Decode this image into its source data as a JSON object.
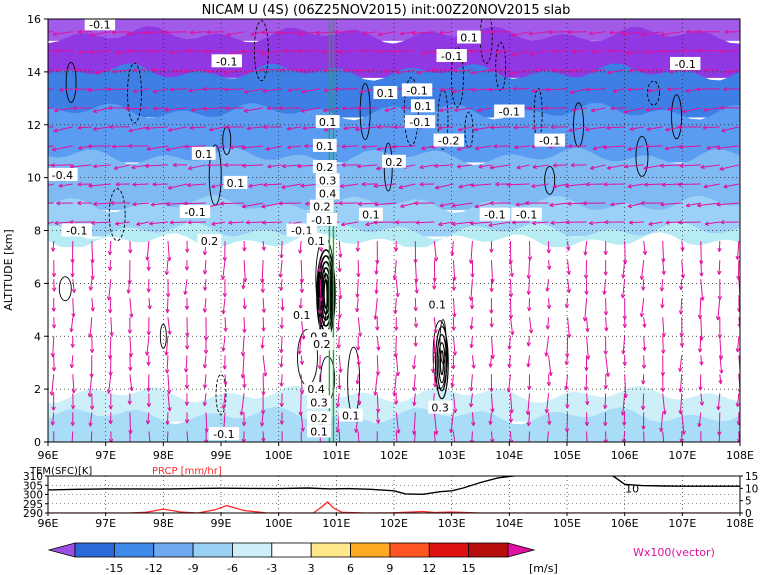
{
  "title": "NICAM U (4S) (06Z25NOV2015) init:00Z20NOV2015 slab",
  "colors": {
    "upward_motion": "#e8e8ff",
    "vectors": "#e0119e",
    "contours": "#000000",
    "grid_line": "#222222",
    "precip": "#ff2a2a",
    "temperature": "#000000",
    "marker_green": "#22aa33"
  },
  "chart_data": [
    {
      "type": "heatmap",
      "title": "NICAM U (4S) (06Z25NOV2015) init:00Z20NOV2015 slab",
      "ylabel": "ALTITUDE [km]",
      "xlim": [
        96,
        108
      ],
      "ylim": [
        0,
        16
      ],
      "xticks": [
        "96E",
        "97E",
        "98E",
        "99E",
        "100E",
        "101E",
        "102E",
        "103E",
        "104E",
        "105E",
        "106E",
        "107E",
        "108E"
      ],
      "yticks": [
        "0",
        "2",
        "4",
        "6",
        "8",
        "10",
        "12",
        "14",
        "16"
      ],
      "grid": true,
      "fill_layers": [
        {
          "top_km": 16.0,
          "value": -15,
          "color": "#a25be8"
        },
        {
          "top_km": 15.4,
          "value": -14,
          "color": "#8f38e3"
        },
        {
          "top_km": 14.0,
          "value": -9,
          "color": "#3e7fe6"
        },
        {
          "top_km": 12.5,
          "value": -7,
          "color": "#5a9cf2"
        },
        {
          "top_km": 10.8,
          "value": -5,
          "color": "#7fbaf5"
        },
        {
          "top_km": 9.0,
          "value": -4,
          "color": "#9bd1f7"
        },
        {
          "top_km": 8.0,
          "value": -2,
          "color": "#b8ecf5"
        },
        {
          "top_km": 7.6,
          "value": 0,
          "color": "#ffffff"
        },
        {
          "top_km": 1.8,
          "value": -2,
          "color": "#cdeff8"
        },
        {
          "top_km": 1.0,
          "value": -3,
          "color": "#a8dcf7"
        }
      ],
      "contour_labels": [
        {
          "x": 96.9,
          "y": 15.8,
          "text": "-0.1"
        },
        {
          "x": 96.25,
          "y": 10.1,
          "text": "-0.4"
        },
        {
          "x": 96.5,
          "y": 8.0,
          "text": "-0.1"
        },
        {
          "x": 98.7,
          "y": 10.9,
          "text": "0.1"
        },
        {
          "x": 99.25,
          "y": 9.8,
          "text": "0.1"
        },
        {
          "x": 98.55,
          "y": 8.7,
          "text": "-0.1"
        },
        {
          "x": 98.8,
          "y": 7.6,
          "text": "0.2"
        },
        {
          "x": 99.1,
          "y": 14.4,
          "text": "-0.1"
        },
        {
          "x": 100.4,
          "y": 8.0,
          "text": "-0.1"
        },
        {
          "x": 100.85,
          "y": 12.1,
          "text": "0.1"
        },
        {
          "x": 100.8,
          "y": 11.2,
          "text": "0.1"
        },
        {
          "x": 100.8,
          "y": 10.4,
          "text": "0.2"
        },
        {
          "x": 100.85,
          "y": 9.9,
          "text": "0.3"
        },
        {
          "x": 100.85,
          "y": 9.4,
          "text": "0.4"
        },
        {
          "x": 100.75,
          "y": 8.9,
          "text": "0.2"
        },
        {
          "x": 100.75,
          "y": 8.4,
          "text": "-0.1"
        },
        {
          "x": 100.65,
          "y": 7.6,
          "text": "0.1"
        },
        {
          "x": 100.4,
          "y": 4.8,
          "text": "0.1"
        },
        {
          "x": 100.7,
          "y": 4.0,
          "text": "0.8"
        },
        {
          "x": 100.75,
          "y": 3.7,
          "text": "0.2"
        },
        {
          "x": 100.65,
          "y": 2.0,
          "text": "0.4"
        },
        {
          "x": 100.7,
          "y": 1.5,
          "text": "0.3"
        },
        {
          "x": 100.7,
          "y": 0.9,
          "text": "0.2"
        },
        {
          "x": 100.7,
          "y": 0.4,
          "text": "0.1"
        },
        {
          "x": 101.25,
          "y": 1.0,
          "text": "0.1"
        },
        {
          "x": 101.6,
          "y": 8.6,
          "text": "0.1"
        },
        {
          "x": 102.0,
          "y": 10.6,
          "text": "0.2"
        },
        {
          "x": 101.85,
          "y": 13.2,
          "text": "0.1"
        },
        {
          "x": 102.4,
          "y": 13.3,
          "text": "-0.1"
        },
        {
          "x": 102.5,
          "y": 12.7,
          "text": "0.1"
        },
        {
          "x": 102.45,
          "y": 12.1,
          "text": "-0.1"
        },
        {
          "x": 102.95,
          "y": 11.4,
          "text": "-0.2"
        },
        {
          "x": 103.0,
          "y": 14.6,
          "text": "-0.1"
        },
        {
          "x": 103.3,
          "y": 15.3,
          "text": "0.1"
        },
        {
          "x": 104.0,
          "y": 12.5,
          "text": "-0.1"
        },
        {
          "x": 104.7,
          "y": 11.4,
          "text": "-0.1"
        },
        {
          "x": 103.75,
          "y": 8.6,
          "text": "-0.1"
        },
        {
          "x": 104.3,
          "y": 8.6,
          "text": "-0.1"
        },
        {
          "x": 107.05,
          "y": 14.3,
          "text": "-0.1"
        },
        {
          "x": 102.75,
          "y": 5.2,
          "text": "0.1"
        },
        {
          "x": 102.8,
          "y": 1.3,
          "text": "0.3"
        },
        {
          "x": 99.05,
          "y": 0.3,
          "text": "-0.1"
        }
      ]
    },
    {
      "type": "line",
      "y_left_title": "TEM(SFC)[K]",
      "y_right_title": "PRCP [mm/hr]",
      "xlim": [
        96,
        108
      ],
      "y_left_ticks": [
        "290",
        "295",
        "300",
        "305",
        "310"
      ],
      "y_left_range": [
        290,
        310
      ],
      "y_right_ticks": [
        "0",
        "5",
        "10",
        "15"
      ],
      "y_right_range": [
        0,
        15
      ],
      "series": [
        {
          "name": "TEM(SFC)[K]",
          "x": [
            96.0,
            96.5,
            97.0,
            97.5,
            98.0,
            98.5,
            99.0,
            99.5,
            100.0,
            100.5,
            100.9,
            101.2,
            101.6,
            102.0,
            102.2,
            102.5,
            102.8,
            103.0,
            103.2,
            103.5,
            103.8,
            104.2,
            104.6,
            105.0,
            105.5,
            105.8,
            106.0,
            106.3,
            106.7,
            107.0,
            107.5,
            108.0
          ],
          "y": [
            302.5,
            302.8,
            303.0,
            303.0,
            302.9,
            303.2,
            303.4,
            303.3,
            303.2,
            303.5,
            303.0,
            303.2,
            302.8,
            302.0,
            300.3,
            300.1,
            301.5,
            302.0,
            303.5,
            306.5,
            309.0,
            310.5,
            311.0,
            311.0,
            311.0,
            310.0,
            305.5,
            304.8,
            304.6,
            304.5,
            304.5,
            304.5
          ]
        },
        {
          "name": "PRCP [mm/hr]",
          "x": [
            96.0,
            96.5,
            97.0,
            97.4,
            97.7,
            98.0,
            98.3,
            98.6,
            98.9,
            99.1,
            99.4,
            99.8,
            100.2,
            100.6,
            100.75,
            100.85,
            100.95,
            101.1,
            101.5,
            102.0,
            102.3,
            102.5,
            102.7,
            103.0,
            103.5,
            104.0,
            105.0,
            106.0,
            107.0,
            108.0
          ],
          "y": [
            0,
            0,
            0,
            0,
            0.3,
            1.6,
            0.4,
            0,
            1.3,
            3.0,
            1.0,
            0,
            0,
            0,
            2.5,
            4.5,
            2.0,
            0.3,
            0,
            0.1,
            0.4,
            0.6,
            0.2,
            0.4,
            0,
            0,
            0,
            0,
            0,
            0
          ]
        }
      ],
      "annotations": [
        {
          "x": 106.25,
          "y_right": 10,
          "text": "10"
        }
      ]
    }
  ],
  "colorbar": {
    "ticks": [
      "-15",
      "-12",
      "-9",
      "-6",
      "-3",
      "3",
      "6",
      "9",
      "12",
      "15"
    ],
    "unit": "[m/s]",
    "colors": [
      "#9c4fe3",
      "#2b6ad8",
      "#3f8ae8",
      "#6faaf0",
      "#9bd0f5",
      "#cdeff8",
      "#ffffff",
      "#ffe78a",
      "#ffaa22",
      "#ff5522",
      "#dd1111",
      "#b80d0d",
      "#e0119e"
    ]
  },
  "vector_legend": "Wx100(vector)"
}
